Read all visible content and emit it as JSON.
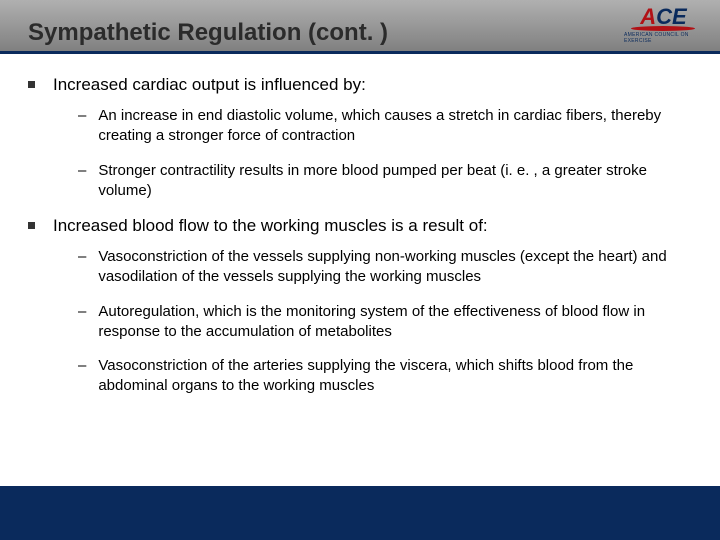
{
  "header": {
    "title": "Sympathetic Regulation (cont. )",
    "logo": {
      "a": "A",
      "c": "C",
      "e": "E",
      "tagline": "AMERICAN COUNCIL ON EXERCISE"
    }
  },
  "colors": {
    "header_grad_top": "#b0b0b0",
    "header_grad_bottom": "#808080",
    "accent": "#0a2a5c",
    "logo_red": "#b11116",
    "text": "#000000",
    "bg": "#ffffff"
  },
  "bullets": [
    {
      "text": "Increased cardiac output is influenced by:",
      "subs": [
        "An increase in end diastolic volume, which causes a stretch in cardiac fibers, thereby creating a stronger force of contraction",
        "Stronger contractility results in more blood pumped per beat (i. e. , a greater stroke volume)"
      ]
    },
    {
      "text": "Increased blood flow to the working muscles is a result of:",
      "subs": [
        "Vasoconstriction of the vessels supplying non-working muscles (except the heart) and vasodilation of the vessels supplying the working muscles",
        "Autoregulation, which is the monitoring system of the effectiveness of blood flow in response to the accumulation of metabolites",
        "Vasoconstriction of the arteries supplying the viscera, which shifts blood from the abdominal organs to the working muscles"
      ]
    }
  ]
}
